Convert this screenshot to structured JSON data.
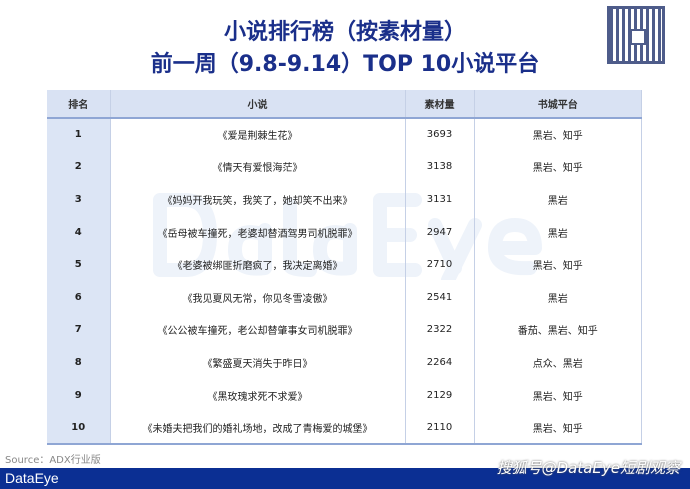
{
  "title": {
    "line1": "小说排行榜（按素材量）",
    "line2": "前一周（9.8-9.14）TOP 10小说平台"
  },
  "watermark": "DataEye",
  "table": {
    "headers": [
      "排名",
      "小说",
      "素材量",
      "书城平台"
    ],
    "rows": [
      {
        "rank": "1",
        "novel": "《爱是荆棘生花》",
        "count": "3693",
        "platform": "黑岩、知乎"
      },
      {
        "rank": "2",
        "novel": "《情天有爱恨海茫》",
        "count": "3138",
        "platform": "黑岩、知乎"
      },
      {
        "rank": "3",
        "novel": "《妈妈开我玩笑，我笑了，她却笑不出来》",
        "count": "3131",
        "platform": "黑岩"
      },
      {
        "rank": "4",
        "novel": "《岳母被车撞死，老婆却替酒驾男司机脱罪》",
        "count": "2947",
        "platform": "黑岩"
      },
      {
        "rank": "5",
        "novel": "《老婆被绑匪折磨疯了，我决定离婚》",
        "count": "2710",
        "platform": "黑岩、知乎"
      },
      {
        "rank": "6",
        "novel": "《我见夏风无常，你见冬雪凌傲》",
        "count": "2541",
        "platform": "黑岩"
      },
      {
        "rank": "7",
        "novel": "《公公被车撞死，老公却替肇事女司机脱罪》",
        "count": "2322",
        "platform": "番茄、黑岩、知乎"
      },
      {
        "rank": "8",
        "novel": "《繁盛夏天消失于昨日》",
        "count": "2264",
        "platform": "点众、黑岩"
      },
      {
        "rank": "9",
        "novel": "《黑玫瑰求死不求爱》",
        "count": "2129",
        "platform": "黑岩、知乎"
      },
      {
        "rank": "10",
        "novel": "《未婚夫把我们的婚礼场地，改成了青梅爱的城堡》",
        "count": "2110",
        "platform": "黑岩、知乎"
      }
    ]
  },
  "footer": {
    "source": "Source：ADX行业版",
    "logo": "DataEye",
    "credit": "搜狐号@DataEye短剧观察"
  }
}
